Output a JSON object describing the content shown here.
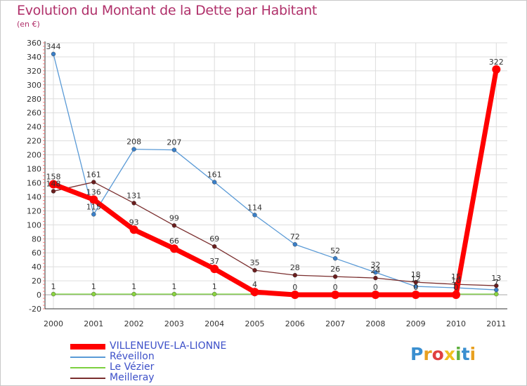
{
  "header": {
    "title": "Evolution du Montant de la Dette par Habitant",
    "subtitle": "(en €)"
  },
  "logo": {
    "letters": [
      "P",
      "r",
      "o",
      "x",
      "i",
      "t",
      "i"
    ],
    "colors": [
      "#3a8fd0",
      "#e8a020",
      "#e04040",
      "#f0c020",
      "#60b040",
      "#3a8fd0",
      "#e8a020"
    ]
  },
  "chart_data": {
    "type": "line",
    "title": "Evolution du Montant de la Dette par Habitant",
    "ylabel": "(en €)",
    "xlabel": "",
    "x": [
      "2000",
      "2001",
      "2002",
      "2003",
      "2004",
      "2005",
      "2006",
      "2007",
      "2008",
      "2009",
      "2010",
      "2011"
    ],
    "ylim": [
      -20,
      360
    ],
    "yticks": [
      -20,
      0,
      20,
      40,
      60,
      80,
      100,
      120,
      140,
      160,
      180,
      200,
      220,
      240,
      260,
      280,
      300,
      320,
      340,
      360
    ],
    "ytick_labels": [
      "-20",
      "0",
      "20",
      "40",
      "60",
      "80",
      "100",
      "120",
      "140",
      "160",
      "180",
      "200",
      "220",
      "240",
      "260",
      "280",
      "300",
      "320",
      "340",
      "360"
    ],
    "grid": true,
    "legend_position": "bottom-left",
    "series": [
      {
        "name": "Réveillon",
        "color": "#5a9ad6",
        "marker": "#3a7fc8",
        "width": 1.3,
        "radius": 3,
        "values": [
          344,
          115,
          208,
          207,
          161,
          114,
          72,
          52,
          32,
          12,
          10,
          7
        ],
        "labels": [
          "344",
          "115",
          "208",
          "207",
          "161",
          "114",
          "72",
          "52",
          "32",
          "12",
          "10",
          "7"
        ]
      },
      {
        "name": "Meilleray",
        "color": "#7a2e2e",
        "marker": "#6a1e1e",
        "width": 1.3,
        "radius": 3,
        "values": [
          148,
          161,
          131,
          99,
          69,
          35,
          28,
          26,
          24,
          18,
          15,
          13
        ],
        "labels": [
          "148",
          "161",
          "131",
          "99",
          "69",
          "35",
          "28",
          "26",
          "24",
          "18",
          "15",
          "13"
        ]
      },
      {
        "name": "Le Vézier",
        "color": "#7cd040",
        "marker": "#8ad440",
        "width": 1.3,
        "radius": 3,
        "values": [
          1,
          1,
          1,
          1,
          1,
          1,
          1,
          1,
          1,
          1,
          1,
          1
        ],
        "labels": [
          "1",
          "1",
          "1",
          "1",
          "1",
          "",
          "",
          "",
          "",
          "",
          "",
          ""
        ]
      },
      {
        "name": "VILLENEUVE-LA-LIONNE",
        "color": "#ff0000",
        "marker": "#ff0000",
        "width": 7,
        "radius": 6,
        "values": [
          158,
          136,
          93,
          66,
          37,
          4,
          0,
          0,
          0,
          0,
          0,
          322
        ],
        "labels": [
          "158",
          "136",
          "93",
          "66",
          "37",
          "4",
          "0",
          "0",
          "0",
          "0",
          "0",
          "322"
        ]
      }
    ],
    "legend_order": [
      "VILLENEUVE-LA-LIONNE",
      "Réveillon",
      "Le Vézier",
      "Meilleray"
    ]
  }
}
